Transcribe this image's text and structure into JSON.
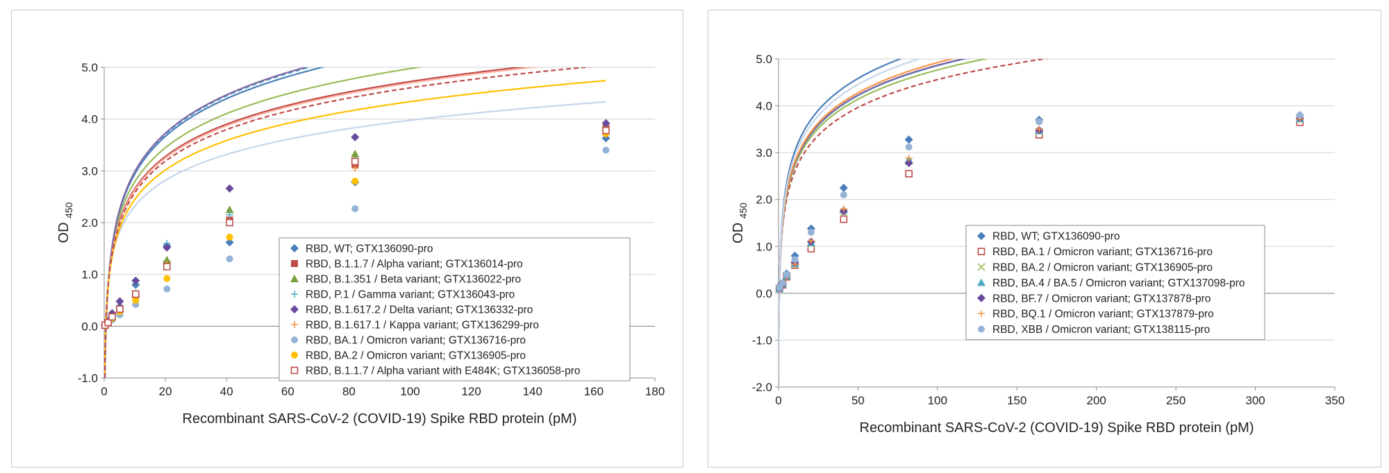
{
  "chart_data": [
    {
      "type": "scatter",
      "title": "",
      "xlabel": "Recombinant SARS-CoV-2 (COVID-19) Spike RBD protein (pM)",
      "ylabel": {
        "main": "OD",
        "sub": "450"
      },
      "xlim": [
        0,
        180
      ],
      "ylim": [
        -1.0,
        5.0
      ],
      "xticks": [
        "0",
        "20",
        "40",
        "60",
        "80",
        "100",
        "120",
        "140",
        "160",
        "180"
      ],
      "yticks": [
        "-1.0",
        "0.0",
        "1.0",
        "2.0",
        "3.0",
        "4.0",
        "5.0"
      ],
      "grid": "horizontal",
      "legend_position": "bottom-right",
      "x": [
        0.3,
        1.3,
        2.6,
        5.1,
        10.3,
        20.5,
        41,
        82,
        164
      ],
      "series": [
        {
          "name": "RBD, WT; GTX136090-pro",
          "color": "#4a7ebb",
          "marker": "diamond",
          "values": [
            0.02,
            0.08,
            0.2,
            0.38,
            0.8,
            1.55,
            1.62,
            2.78,
            3.63
          ],
          "fit": {
            "a": 1.05,
            "b": 0.52,
            "dash": false,
            "color": "#4a7ebb"
          }
        },
        {
          "name": "RBD, B.1.1.7 / Alpha variant; GTX136014-pro",
          "color": "#be4b48",
          "marker": "square",
          "values": [
            0.02,
            0.06,
            0.18,
            0.33,
            0.62,
            1.2,
            2.05,
            3.12,
            3.82
          ],
          "fit": {
            "a": 0.9,
            "b": 0.58,
            "dash": false,
            "color": "#be4b48"
          }
        },
        {
          "name": "RBD, B.1.351 / Beta variant; GTX136022-pro",
          "color": "#77a03f",
          "marker": "triangle",
          "values": [
            0.02,
            0.07,
            0.2,
            0.35,
            0.63,
            1.28,
            2.25,
            3.33,
            3.85
          ],
          "fit": {
            "a": 0.95,
            "b": 0.6,
            "dash": false,
            "color": "#9bbb59"
          }
        },
        {
          "name": "RBD, P.1 / Gamma variant; GTX136043-pro",
          "color": "#4bacc6",
          "marker": "plus",
          "values": [
            0.02,
            0.07,
            0.19,
            0.33,
            0.6,
            1.6,
            2.15,
            3.2,
            3.75
          ],
          "fit": {
            "a": 1.07,
            "b": 0.5,
            "dash": true,
            "color": "#4bacc6"
          }
        },
        {
          "name": "RBD, B.1.617.2 / Delta variant; GTX136332-pro",
          "color": "#6a4a9c",
          "marker": "diamond",
          "values": [
            0.03,
            0.1,
            0.25,
            0.48,
            0.88,
            1.52,
            2.66,
            3.65,
            3.92
          ],
          "fit": {
            "a": 1.07,
            "b": 0.52,
            "dash": false,
            "color": "#8064a2"
          }
        },
        {
          "name": "RBD, B.1.617.1 / Kappa variant; GTX136299-pro",
          "color": "#f79646",
          "marker": "plus",
          "values": [
            0.02,
            0.06,
            0.17,
            0.3,
            0.55,
            1.2,
            2.02,
            3.05,
            3.7
          ],
          "fit": {
            "a": 0.9,
            "b": 0.55,
            "dash": false,
            "color": "#ffb6a8"
          }
        },
        {
          "name": "RBD, BA.1 / Omicron variant; GTX136716-pro",
          "color": "#95b3d7",
          "marker": "circle",
          "values": [
            0.01,
            0.05,
            0.12,
            0.22,
            0.42,
            0.72,
            1.3,
            2.27,
            3.4
          ],
          "fit": {
            "a": 0.72,
            "b": 0.66,
            "dash": false,
            "color": "#c5d5ea"
          }
        },
        {
          "name": "RBD, BA.2 / Omicron variant; GTX136905-pro",
          "color": "#ffc000",
          "marker": "circle",
          "values": [
            0.01,
            0.06,
            0.15,
            0.28,
            0.5,
            0.92,
            1.72,
            2.8,
            3.72
          ],
          "fit": {
            "a": 0.82,
            "b": 0.56,
            "dash": false,
            "color": "#ffc000"
          }
        },
        {
          "name": "RBD, B.1.1.7 / Alpha variant with E484K; GTX136058-pro",
          "color": "#be4b48",
          "marker": "open-square",
          "values": [
            0.02,
            0.07,
            0.18,
            0.33,
            0.62,
            1.15,
            2.0,
            3.18,
            3.78
          ],
          "fit": {
            "a": 0.88,
            "b": 0.55,
            "dash": true,
            "color": "#be4b48"
          }
        }
      ]
    },
    {
      "type": "scatter",
      "title": "",
      "xlabel": "Recombinant SARS-CoV-2 (COVID-19) Spike RBD protein (pM)",
      "ylabel": {
        "main": "OD",
        "sub": "450"
      },
      "xlim": [
        0,
        350
      ],
      "ylim": [
        -2.0,
        5.0
      ],
      "xticks": [
        "0",
        "50",
        "100",
        "150",
        "200",
        "250",
        "300",
        "350"
      ],
      "yticks": [
        "-2.0",
        "-1.0",
        "0.0",
        "1.0",
        "2.0",
        "3.0",
        "4.0",
        "5.0"
      ],
      "grid": "horizontal",
      "legend_position": "center-right",
      "x": [
        0.6,
        2.6,
        5.1,
        10.3,
        20.5,
        41,
        82,
        164,
        328
      ],
      "series": [
        {
          "name": "RBD, WT; GTX136090-pro",
          "color": "#4a7ebb",
          "marker": "diamond",
          "values": [
            0.15,
            0.22,
            0.42,
            0.8,
            1.38,
            2.25,
            3.28,
            3.7,
            3.8
          ],
          "fit": {
            "a": 0.98,
            "b": 0.75,
            "dash": false,
            "color": "#4a7ebb"
          }
        },
        {
          "name": "RBD, BA.1 / Omicron variant; GTX136716-pro",
          "color": "#be4b48",
          "marker": "open-square",
          "values": [
            0.1,
            0.18,
            0.35,
            0.6,
            0.95,
            1.58,
            2.55,
            3.38,
            3.65
          ],
          "fit": {
            "a": 0.86,
            "b": 0.6,
            "dash": true,
            "color": "#be4b48"
          }
        },
        {
          "name": "RBD, BA.2 / Omicron variant; GTX136905-pro",
          "color": "#9bbb59",
          "marker": "x",
          "values": [
            0.1,
            0.2,
            0.38,
            0.62,
            1.05,
            1.72,
            2.82,
            3.45,
            3.72
          ],
          "fit": {
            "a": 0.9,
            "b": 0.62,
            "dash": false,
            "color": "#9bbb59"
          }
        },
        {
          "name": "RBD, BA.4 / BA.5 / Omicron variant; GTX137098-pro",
          "color": "#4bacc6",
          "marker": "triangle",
          "values": [
            0.1,
            0.2,
            0.37,
            0.63,
            1.08,
            1.78,
            2.85,
            3.47,
            3.72
          ],
          "fit": {
            "a": 0.92,
            "b": 0.62,
            "dash": false,
            "color": "#4bacc6"
          }
        },
        {
          "name": "RBD, BF.7 / Omicron variant; GTX137878-pro",
          "color": "#6a4a9c",
          "marker": "diamond",
          "values": [
            0.1,
            0.2,
            0.38,
            0.65,
            1.1,
            1.75,
            2.78,
            3.48,
            3.74
          ],
          "fit": {
            "a": 0.92,
            "b": 0.63,
            "dash": false,
            "color": "#8064a2"
          }
        },
        {
          "name": "RBD, BQ.1 / Omicron variant; GTX137879-pro",
          "color": "#f79646",
          "marker": "plus",
          "values": [
            0.1,
            0.19,
            0.36,
            0.62,
            1.12,
            1.8,
            2.88,
            3.5,
            3.72
          ],
          "fit": {
            "a": 0.93,
            "b": 0.64,
            "dash": false,
            "color": "#f79646"
          }
        },
        {
          "name": "RBD, XBB / Omicron variant; GTX138115-pro",
          "color": "#95b3d7",
          "marker": "circle",
          "values": [
            0.12,
            0.22,
            0.4,
            0.72,
            1.3,
            2.1,
            3.12,
            3.66,
            3.8
          ],
          "fit": {
            "a": 0.96,
            "b": 0.7,
            "dash": false,
            "color": "#c5d5ea"
          }
        }
      ]
    }
  ]
}
